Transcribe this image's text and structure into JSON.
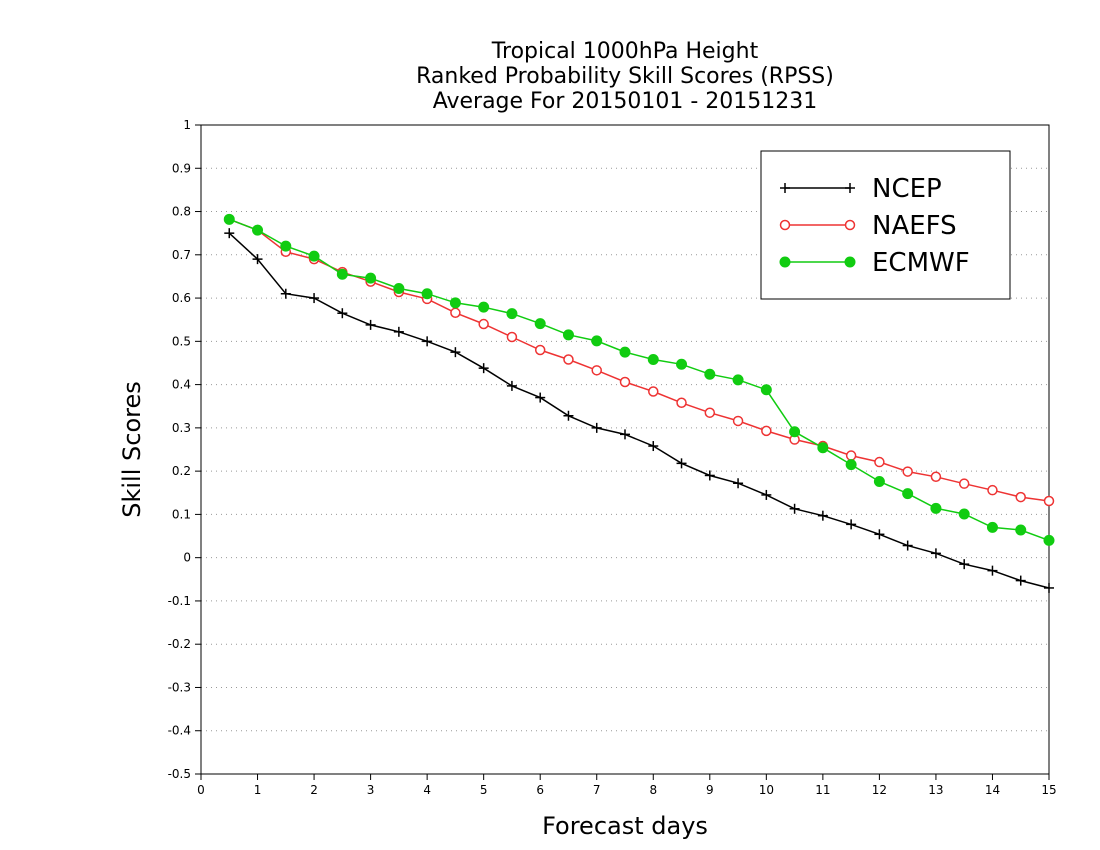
{
  "chart_data": {
    "type": "line",
    "title": [
      "Tropical 1000hPa Height",
      "Ranked Probability Skill Scores (RPSS)",
      "Average For 20150101 - 20151231"
    ],
    "xlabel": "Forecast days",
    "ylabel": "Skill Scores",
    "xlim": [
      0,
      15
    ],
    "ylim": [
      -0.5,
      1
    ],
    "x_ticks": [
      "0",
      "1",
      "2",
      "3",
      "4",
      "5",
      "6",
      "7",
      "8",
      "9",
      "10",
      "11",
      "12",
      "13",
      "14",
      "15"
    ],
    "y_ticks": [
      "1",
      "0.9",
      "0.8",
      "0.7",
      "0.6",
      "0.5",
      "0.4",
      "0.3",
      "0.2",
      "0.1",
      "0",
      "-0.1",
      "-0.2",
      "-0.3",
      "-0.4",
      "-0.5"
    ],
    "grid": "horizontal dotted",
    "legend_position": "top-right",
    "x": [
      0.5,
      1,
      1.5,
      2,
      2.5,
      3,
      3.5,
      4,
      4.5,
      5,
      5.5,
      6,
      6.5,
      7,
      7.5,
      8,
      8.5,
      9,
      9.5,
      10,
      10.5,
      11,
      11.5,
      12,
      12.5,
      13,
      13.5,
      14,
      14.5,
      15
    ],
    "series": [
      {
        "name": "NCEP",
        "color": "#000000",
        "marker": "plus",
        "values": [
          0.75,
          0.69,
          0.61,
          0.6,
          0.565,
          0.538,
          0.522,
          0.5,
          0.475,
          0.438,
          0.397,
          0.37,
          0.328,
          0.3,
          0.285,
          0.258,
          0.218,
          0.19,
          0.172,
          0.145,
          0.113,
          0.097,
          0.077,
          0.054,
          0.028,
          0.01,
          -0.015,
          -0.03,
          -0.053,
          -0.07
        ]
      },
      {
        "name": "NAEFS",
        "color": "#ee3333",
        "marker": "open-circle",
        "values": [
          0.782,
          0.757,
          0.707,
          0.69,
          0.66,
          0.638,
          0.614,
          0.598,
          0.566,
          0.54,
          0.51,
          0.48,
          0.458,
          0.433,
          0.406,
          0.384,
          0.358,
          0.335,
          0.316,
          0.293,
          0.273,
          0.258,
          0.236,
          0.221,
          0.199,
          0.187,
          0.171,
          0.156,
          0.14,
          0.131
        ]
      },
      {
        "name": "ECMWF",
        "color": "#11cc11",
        "marker": "filled-circle",
        "values": [
          0.782,
          0.757,
          0.72,
          0.697,
          0.655,
          0.646,
          0.622,
          0.61,
          0.589,
          0.579,
          0.564,
          0.541,
          0.515,
          0.501,
          0.475,
          0.458,
          0.447,
          0.424,
          0.411,
          0.388,
          0.291,
          0.254,
          0.215,
          0.176,
          0.148,
          0.114,
          0.101,
          0.07,
          0.064,
          0.04
        ]
      }
    ]
  }
}
